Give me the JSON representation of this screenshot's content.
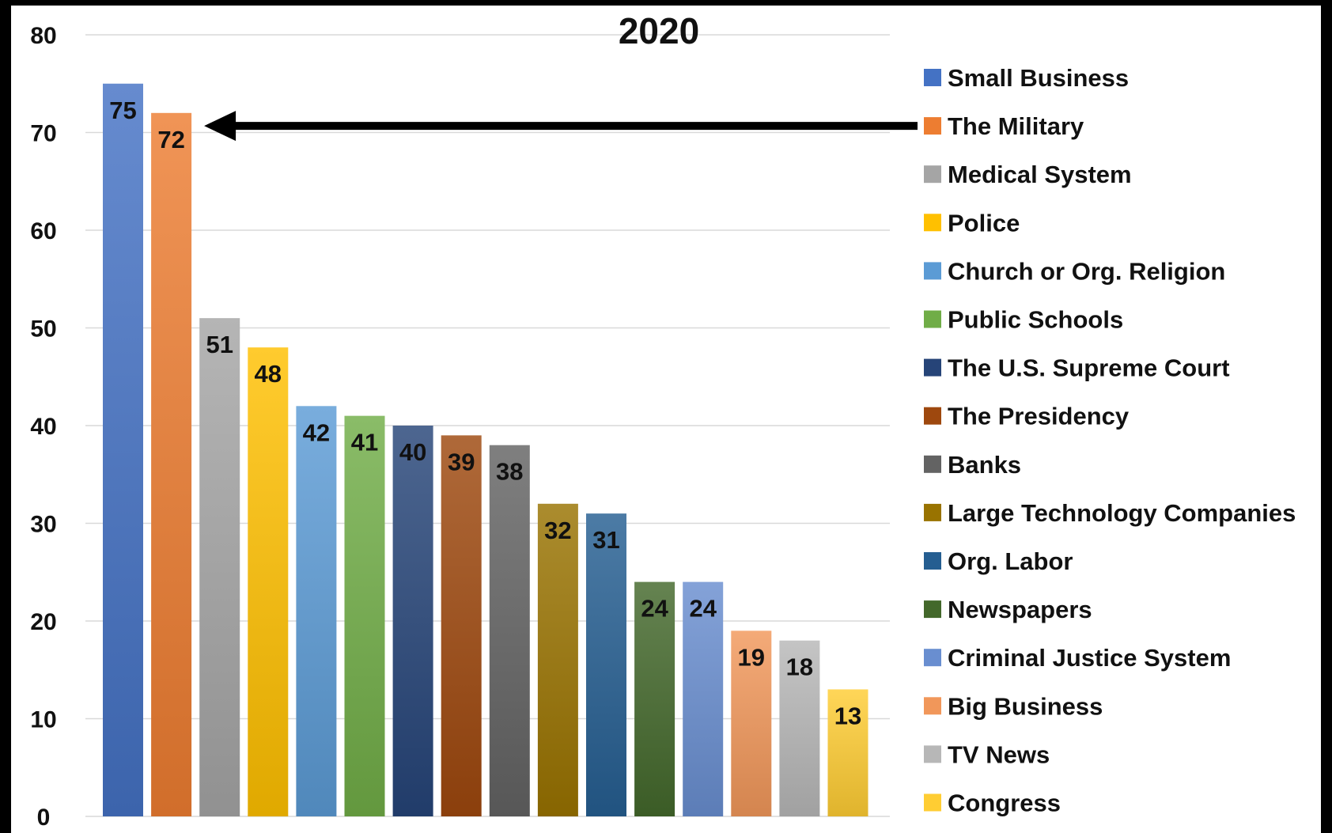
{
  "chart_data": {
    "type": "bar",
    "title": "2020",
    "xlabel": "",
    "ylabel": "",
    "ylim": [
      0,
      80
    ],
    "yticks": [
      0,
      10,
      20,
      30,
      40,
      50,
      60,
      70,
      80
    ],
    "grid": true,
    "legend_position": "right",
    "categories": [
      "Small Business",
      "The Military",
      "Medical System",
      "Police",
      "Church or Org. Religion",
      "Public Schools",
      "The U.S. Supreme Court",
      "The Presidency",
      "Banks",
      "Large Technology Companies",
      "Org. Labor",
      "Newspapers",
      "Criminal Justice System",
      "Big Business",
      "TV News",
      "Congress"
    ],
    "values": [
      75,
      72,
      51,
      48,
      42,
      41,
      40,
      39,
      38,
      32,
      31,
      24,
      24,
      19,
      18,
      13
    ],
    "colors": [
      "#4472C4",
      "#ED7D31",
      "#A5A5A5",
      "#FFC000",
      "#5B9BD5",
      "#70AD47",
      "#264478",
      "#9E480E",
      "#636363",
      "#997300",
      "#255E91",
      "#43682B",
      "#698ED0",
      "#F1975A",
      "#B7B7B7",
      "#FFCD33"
    ],
    "annotation": {
      "type": "arrow",
      "points_to": "The Military"
    }
  }
}
